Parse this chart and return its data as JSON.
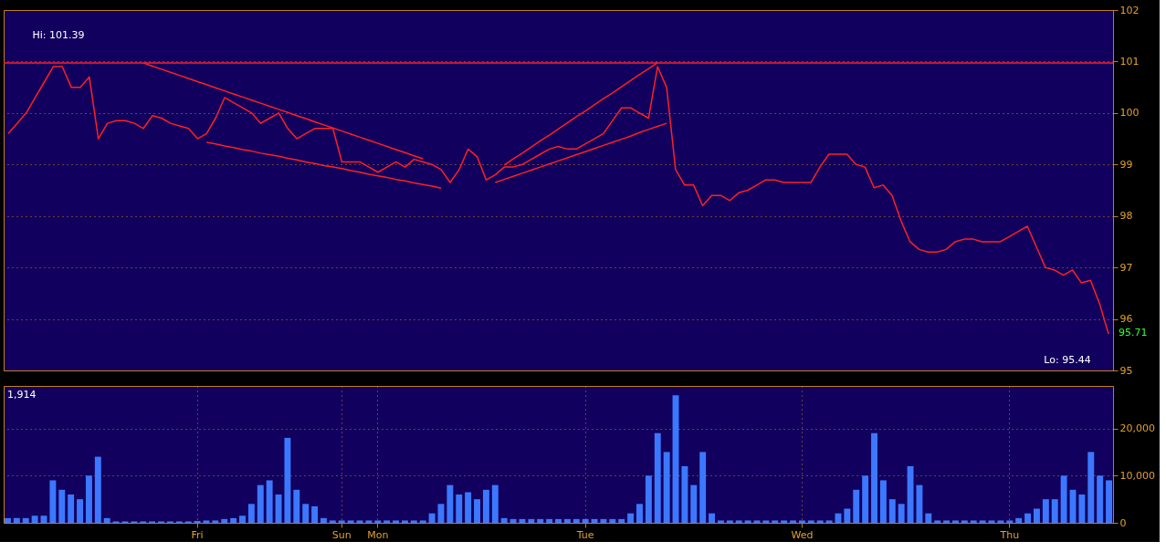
{
  "chart_data": [
    {
      "type": "line",
      "tick_labels": "y",
      "grid": true,
      "ylim": [
        95,
        102
      ],
      "yticks": [
        95,
        96,
        97,
        98,
        99,
        100,
        101,
        102
      ],
      "categories": [
        null,
        null,
        null,
        null,
        null,
        null,
        null,
        null,
        null,
        null,
        null,
        null,
        null,
        null,
        null,
        null,
        null,
        null,
        null,
        null,
        null,
        null,
        null,
        null,
        null,
        null,
        null,
        null,
        null,
        null,
        null,
        null,
        null,
        null,
        null,
        null,
        null,
        null,
        null,
        null,
        null,
        null,
        null,
        null,
        null,
        null,
        null,
        null,
        null,
        null,
        null,
        null,
        null,
        null,
        null,
        null,
        null,
        null,
        null,
        null,
        null,
        null,
        null,
        null,
        null,
        null,
        null,
        null,
        null,
        null,
        null,
        null,
        null,
        null,
        null,
        null,
        null,
        null,
        null,
        null,
        null,
        null,
        null,
        null,
        null,
        null,
        null,
        null,
        null,
        null,
        null,
        null,
        null,
        null,
        null,
        null,
        null,
        null,
        null,
        null,
        null,
        null,
        null,
        null,
        null,
        null,
        null,
        null,
        null,
        null,
        null,
        null,
        null,
        null,
        null,
        null,
        null,
        null,
        null,
        null,
        null,
        null,
        null
      ],
      "series": [
        {
          "color": "#ff2020",
          "values": [
            99.6,
            99.8,
            100.0,
            100.3,
            100.6,
            100.9,
            100.9,
            100.5,
            100.5,
            100.7,
            99.5,
            99.8,
            99.85,
            99.85,
            99.8,
            99.7,
            99.95,
            99.9,
            99.8,
            99.75,
            99.7,
            99.5,
            99.6,
            99.9,
            100.3,
            100.2,
            100.1,
            100.0,
            99.8,
            99.9,
            100.0,
            99.7,
            99.5,
            99.6,
            99.7,
            99.7,
            99.7,
            99.05,
            99.05,
            99.05,
            98.95,
            98.85,
            98.95,
            99.05,
            98.95,
            99.1,
            99.05,
            99.0,
            98.9,
            98.65,
            98.9,
            99.3,
            99.15,
            98.7,
            98.8,
            98.95,
            98.95,
            99.0,
            99.1,
            99.2,
            99.3,
            99.35,
            99.3,
            99.3,
            99.4,
            99.5,
            99.6,
            99.85,
            100.1,
            100.1,
            100.0,
            99.9,
            100.9,
            100.5,
            98.9,
            98.6,
            98.6,
            98.2,
            98.4,
            98.4,
            98.3,
            98.45,
            98.5,
            98.6,
            98.7,
            98.7,
            98.65,
            98.65,
            98.65,
            98.65,
            98.95,
            99.2,
            99.2,
            99.2,
            99.0,
            98.95,
            98.55,
            98.6,
            98.4,
            97.9,
            97.5,
            97.35,
            97.3,
            97.3,
            97.35,
            97.5,
            97.55,
            97.55,
            97.5,
            97.5,
            97.5,
            97.6,
            97.7,
            97.8,
            97.4,
            97.0,
            96.95,
            96.85,
            96.95,
            96.7,
            96.75,
            96.3,
            95.71
          ]
        },
        {
          "color": "#ff2020",
          "values": [
            null,
            null,
            null,
            null,
            null,
            null,
            null,
            null,
            null,
            null,
            null,
            null,
            null,
            null,
            null,
            100.97,
            100.91,
            100.85,
            100.79,
            100.73,
            100.67,
            100.61,
            100.55,
            100.49,
            100.43,
            100.37,
            100.31,
            100.25,
            100.19,
            100.13,
            100.07,
            100.01,
            99.95,
            99.89,
            99.83,
            99.77,
            99.71,
            99.65,
            99.59,
            99.53,
            99.47,
            99.41,
            99.35,
            99.29,
            99.23,
            99.17,
            99.11,
            null,
            null,
            null,
            null,
            null,
            null,
            null,
            null,
            null,
            null,
            null,
            null,
            null,
            null,
            null,
            null,
            null,
            null,
            null,
            null,
            null,
            null,
            null,
            null,
            null,
            null,
            null,
            null,
            null,
            null,
            null,
            null,
            null,
            null,
            null,
            null,
            null,
            null,
            null,
            null,
            null,
            null,
            null,
            null,
            null,
            null,
            null,
            null,
            null,
            null,
            null,
            null,
            null,
            null,
            null,
            null,
            null,
            null,
            null,
            null,
            null,
            null,
            null,
            null,
            null,
            null,
            null,
            null,
            null,
            null,
            null,
            null,
            null,
            null,
            null,
            null
          ]
        },
        {
          "color": "#ff2020",
          "values": [
            null,
            null,
            null,
            null,
            null,
            null,
            null,
            null,
            null,
            null,
            null,
            null,
            null,
            null,
            null,
            null,
            null,
            null,
            null,
            null,
            null,
            null,
            99.43,
            99.4,
            99.36,
            99.33,
            99.29,
            99.26,
            99.22,
            99.19,
            99.16,
            99.12,
            99.09,
            99.05,
            99.02,
            98.98,
            98.95,
            98.92,
            98.88,
            98.85,
            98.81,
            98.78,
            98.75,
            98.71,
            98.68,
            98.64,
            98.61,
            98.58,
            98.54,
            null,
            null,
            null,
            null,
            null,
            null,
            null,
            null,
            null,
            null,
            null,
            null,
            null,
            null,
            null,
            null,
            null,
            null,
            null,
            null,
            null,
            null,
            null,
            null,
            null,
            null,
            null,
            null,
            null,
            null,
            null,
            null,
            null,
            null,
            null,
            null,
            null,
            null,
            null,
            null,
            null,
            null,
            null,
            null,
            null,
            null,
            null,
            null,
            null,
            null,
            null,
            null,
            null,
            null,
            null,
            null,
            null,
            null,
            null,
            null,
            null,
            null,
            null,
            null,
            null,
            null,
            null,
            null,
            null,
            null,
            null,
            null,
            null,
            null
          ]
        },
        {
          "color": "#ff2020",
          "values": [
            null,
            null,
            null,
            null,
            null,
            null,
            null,
            null,
            null,
            null,
            null,
            null,
            null,
            null,
            null,
            null,
            null,
            null,
            null,
            null,
            null,
            null,
            null,
            null,
            null,
            null,
            null,
            null,
            null,
            null,
            null,
            null,
            null,
            null,
            null,
            null,
            null,
            null,
            null,
            null,
            null,
            null,
            null,
            null,
            null,
            null,
            null,
            null,
            null,
            null,
            null,
            null,
            null,
            null,
            null,
            98.99,
            99.11,
            99.22,
            99.34,
            99.46,
            99.57,
            99.69,
            99.81,
            99.93,
            100.04,
            100.16,
            100.28,
            100.39,
            100.51,
            100.63,
            100.75,
            100.86,
            100.98,
            null,
            null,
            null,
            null,
            null,
            null,
            null,
            null,
            null,
            null,
            null,
            null,
            null,
            null,
            null,
            null,
            null,
            null,
            null,
            null,
            null,
            null,
            null,
            null,
            null,
            null,
            null,
            null,
            null,
            null,
            null,
            null,
            null,
            null,
            null,
            null,
            null,
            null,
            null,
            null,
            null,
            null,
            null,
            null,
            null,
            null,
            null,
            null,
            null,
            null
          ]
        },
        {
          "color": "#ff2020",
          "values": [
            null,
            null,
            null,
            null,
            null,
            null,
            null,
            null,
            null,
            null,
            null,
            null,
            null,
            null,
            null,
            null,
            null,
            null,
            null,
            null,
            null,
            null,
            null,
            null,
            null,
            null,
            null,
            null,
            null,
            null,
            null,
            null,
            null,
            null,
            null,
            null,
            null,
            null,
            null,
            null,
            null,
            null,
            null,
            null,
            null,
            null,
            null,
            null,
            null,
            null,
            null,
            null,
            null,
            null,
            98.65,
            98.71,
            98.77,
            98.83,
            98.89,
            98.95,
            99.01,
            99.07,
            99.13,
            99.19,
            99.25,
            99.31,
            99.37,
            99.43,
            99.49,
            99.55,
            99.62,
            99.68,
            99.74,
            99.8,
            null,
            null,
            null,
            null,
            null,
            null,
            null,
            null,
            null,
            null,
            null,
            null,
            null,
            null,
            null,
            null,
            null,
            null,
            null,
            null,
            null,
            null,
            null,
            null,
            null,
            null,
            null,
            null,
            null,
            null,
            null,
            null,
            null,
            null,
            null,
            null,
            null,
            null,
            null,
            null,
            null,
            null,
            null,
            null,
            null,
            null,
            null,
            null,
            null
          ]
        }
      ],
      "ref_lines": [
        {
          "axis": "y",
          "value": 100.97,
          "label": null,
          "color": "#ff2020",
          "line_style": "solid"
        }
      ],
      "annotations": [
        "Hi: 101.39",
        "Lo: 95.44",
        "95.71"
      ]
    },
    {
      "type": "bar",
      "grid": true,
      "ylim": [
        0,
        29000
      ],
      "yticks": [
        0,
        {
          "value": 10000,
          "label": "10,000"
        },
        {
          "value": 20000,
          "label": "20,000"
        }
      ],
      "categories": [
        null,
        null,
        null,
        null,
        null,
        null,
        null,
        null,
        null,
        null,
        null,
        null,
        null,
        null,
        null,
        null,
        null,
        null,
        null,
        null,
        null,
        "Fri",
        null,
        null,
        null,
        null,
        null,
        null,
        null,
        null,
        null,
        null,
        null,
        null,
        null,
        null,
        null,
        "Sun",
        null,
        null,
        null,
        "Mon",
        null,
        null,
        null,
        null,
        null,
        null,
        null,
        null,
        null,
        null,
        null,
        null,
        null,
        null,
        null,
        null,
        null,
        null,
        null,
        null,
        null,
        null,
        "Tue",
        null,
        null,
        null,
        null,
        null,
        null,
        null,
        null,
        null,
        null,
        null,
        null,
        null,
        null,
        null,
        null,
        null,
        null,
        null,
        null,
        null,
        null,
        null,
        "Wed",
        null,
        null,
        null,
        null,
        null,
        null,
        null,
        null,
        null,
        null,
        null,
        null,
        null,
        null,
        null,
        null,
        null,
        null,
        null,
        null,
        null,
        null,
        "Thu",
        null,
        null,
        null,
        null,
        null,
        null,
        null,
        null,
        null,
        null,
        null
      ],
      "series": [
        {
          "color": "#3c78ff",
          "values": [
            1000,
            1000,
            1000,
            1500,
            1500,
            9000,
            7000,
            6000,
            5000,
            10000,
            14000,
            1000,
            300,
            300,
            300,
            300,
            300,
            300,
            300,
            300,
            300,
            400,
            500,
            500,
            800,
            1000,
            1500,
            4000,
            8000,
            9000,
            6000,
            18000,
            7000,
            4000,
            3500,
            1000,
            500,
            500,
            500,
            500,
            500,
            500,
            500,
            500,
            500,
            500,
            500,
            2000,
            4000,
            8000,
            6000,
            6500,
            5000,
            7000,
            8000,
            1000,
            800,
            800,
            800,
            800,
            800,
            800,
            800,
            800,
            800,
            800,
            800,
            800,
            800,
            2000,
            4000,
            10000,
            19000,
            15000,
            27000,
            12000,
            8000,
            15000,
            2000,
            500,
            500,
            500,
            500,
            500,
            500,
            500,
            500,
            500,
            500,
            500,
            500,
            500,
            2000,
            3000,
            7000,
            10000,
            19000,
            9000,
            5000,
            4000,
            12000,
            8000,
            2000,
            500,
            500,
            500,
            500,
            500,
            500,
            500,
            500,
            500,
            1000,
            2000,
            3000,
            5000,
            5000,
            10000,
            7000,
            6000,
            15000,
            10000,
            9000
          ]
        }
      ],
      "annotations": [
        "1,914"
      ]
    }
  ]
}
